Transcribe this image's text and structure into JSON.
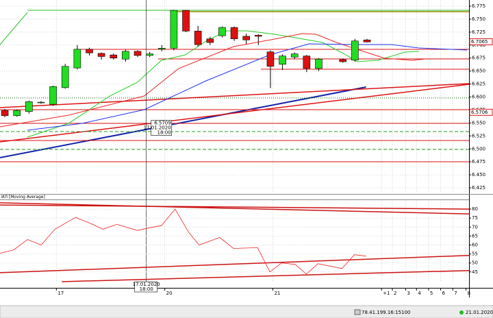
{
  "chart_data": [
    {
      "type": "candlestick",
      "x": [
        0,
        1,
        2,
        3,
        4,
        5,
        6,
        7,
        8,
        9,
        10,
        11,
        12,
        13,
        14,
        15,
        16,
        17,
        18,
        19,
        20,
        21,
        22,
        23,
        24,
        25,
        26,
        28,
        29,
        30
      ],
      "open": [
        6.574,
        6.564,
        6.572,
        6.589,
        6.586,
        6.618,
        6.656,
        6.692,
        6.684,
        6.681,
        6.673,
        6.688,
        6.68,
        6.692,
        6.694,
        6.767,
        6.727,
        6.712,
        6.718,
        6.734,
        6.717,
        6.719,
        6.687,
        6.663,
        6.677,
        6.679,
        6.655,
        6.672,
        6.671,
        6.71
      ],
      "high": [
        6.577,
        6.576,
        6.593,
        6.592,
        6.622,
        6.664,
        6.7,
        6.695,
        6.686,
        6.684,
        6.691,
        6.69,
        6.687,
        6.7,
        6.768,
        6.768,
        6.737,
        6.716,
        6.736,
        6.736,
        6.722,
        6.721,
        6.69,
        6.682,
        6.686,
        6.681,
        6.675,
        6.674,
        6.712,
        6.712
      ],
      "low": [
        6.561,
        6.562,
        6.568,
        6.587,
        6.583,
        6.616,
        6.653,
        6.68,
        6.672,
        6.672,
        6.668,
        6.677,
        6.677,
        6.688,
        6.69,
        6.725,
        6.697,
        6.7,
        6.715,
        6.708,
        6.702,
        6.7,
        6.617,
        6.652,
        6.673,
        6.648,
        6.65,
        6.666,
        6.668,
        6.705
      ],
      "close": [
        6.564,
        6.574,
        6.591,
        6.59,
        6.62,
        6.659,
        6.692,
        6.685,
        6.678,
        6.675,
        6.688,
        6.68,
        6.683,
        6.694,
        6.767,
        6.727,
        6.701,
        6.705,
        6.734,
        6.712,
        6.71,
        6.717,
        6.659,
        6.679,
        6.683,
        6.655,
        6.673,
        6.668,
        6.708,
        6.706
      ],
      "up_color": "#22dd22",
      "down_color": "#dd1111",
      "xlim": [
        -0.4,
        38.45
      ],
      "ylim": [
        6.4145,
        6.7869
      ],
      "yticks": [
        6.425,
        {
          "value": 6.45,
          "label": "6.450"
        },
        6.475,
        {
          "value": 6.5,
          "label": "6.500"
        },
        6.525,
        {
          "value": 6.55,
          "label": "6.550"
        },
        6.575,
        {
          "value": 6.6,
          "label": "6.600"
        },
        6.625,
        {
          "value": 6.65,
          "label": "6.650"
        },
        6.675,
        {
          "value": 6.7,
          "label": "6.700"
        },
        6.725,
        {
          "value": 6.75,
          "label": "6.750"
        },
        6.775
      ],
      "xticks": [
        {
          "value": 4.27,
          "label": "17"
        },
        {
          "value": 13.25,
          "label": "20"
        },
        {
          "value": 22.2,
          "label": "21"
        },
        {
          "value": 31.2,
          "label": "+1"
        },
        {
          "value": 32.1,
          "label": "2"
        },
        {
          "value": 33.2,
          "label": "3"
        },
        {
          "value": 34.1,
          "label": "4"
        },
        {
          "value": 35.1,
          "label": "5"
        },
        {
          "value": 36.1,
          "label": "6"
        },
        {
          "value": 37.1,
          "label": "7"
        },
        {
          "value": 38.2,
          "label": "8"
        }
      ],
      "price_labels": [
        6.7065,
        6.5706
      ],
      "moving_averages": [
        {
          "color": "#22cc22",
          "x": [
            1.88,
            5.29,
            8.7,
            10.98,
            12.97,
            14.96,
            16.66,
            18.37,
            20.08,
            22.35,
            24.06,
            26.33,
            28.04,
            29.18,
            30.89,
            33.16,
            34.3
          ],
          "values": [
            6.5228,
            6.5492,
            6.602,
            6.6284,
            6.6707,
            6.6812,
            6.7077,
            6.7275,
            6.7275,
            6.7209,
            6.7143,
            6.705,
            6.6839,
            6.668,
            6.6707,
            6.6865,
            6.6878
          ]
        },
        {
          "color": "#ee2222",
          "x": [
            -0.4,
            5.29,
            11.55,
            14.39,
            18.94,
            22.35,
            24.63,
            25.77,
            27.47,
            29.18,
            31.45,
            33.73,
            34.87
          ],
          "values": [
            6.5426,
            6.565,
            6.602,
            6.6548,
            6.6971,
            6.7116,
            6.7222,
            6.7209,
            6.705,
            6.6918,
            6.6746,
            6.6707,
            6.6733
          ]
        },
        {
          "color": "#2233ee",
          "x": [
            1.88,
            6.43,
            11.55,
            16.66,
            21.95,
            25.2,
            29.18,
            32.02,
            34.3,
            38.28
          ],
          "values": [
            6.536,
            6.5492,
            6.5756,
            6.6311,
            6.6812,
            6.7024,
            6.701,
            6.701,
            6.6944,
            6.6905
          ]
        }
      ],
      "lines": [
        {
          "x": [
            -0.4,
            29.92
          ],
          "y": [
            6.4831,
            6.6192
          ],
          "color": "#1122aa",
          "width": 2
        },
        {
          "x": [
            -0.4,
            38.45
          ],
          "y": [
            6.5796,
            6.6258
          ],
          "color": "#dd1111",
          "width": 1.5
        },
        {
          "x": [
            -0.4,
            38.45
          ],
          "y": [
            6.5135,
            6.6245
          ],
          "color": "#dd1111",
          "width": 1.5
        },
        {
          "x": [
            -0.4,
            1.88
          ],
          "y": [
            6.701,
            6.7631
          ],
          "color": "#22bb22",
          "width": 1
        },
        {
          "x": [
            1.88,
            38.45
          ],
          "y": [
            6.7671,
            6.7671
          ],
          "color": "#22bb22",
          "width": 1
        },
        {
          "x": [
            13.7,
            38.45
          ],
          "y": [
            6.7644,
            6.7644
          ],
          "color": "#998800",
          "width": 1.5
        },
        {
          "x": [
            5.86,
            38.45
          ],
          "y": [
            6.6918,
            6.6918
          ],
          "color": "#dd1111",
          "width": 1
        },
        {
          "x": [
            12.7,
            38.45
          ],
          "y": [
            6.6733,
            6.6733
          ],
          "color": "#dd1111",
          "width": 1
        },
        {
          "x": [
            21.2,
            38.45
          ],
          "y": [
            6.6535,
            6.6535
          ],
          "color": "#dd1111",
          "width": 1
        },
        {
          "x": [
            -0.4,
            38.45
          ],
          "y": [
            6.5756,
            6.5756
          ],
          "color": "#dd1111",
          "width": 1
        },
        {
          "x": [
            -0.4,
            38.45
          ],
          "y": [
            6.5492,
            6.5492
          ],
          "color": "#dd1111",
          "width": 1
        },
        {
          "x": [
            -0.4,
            38.45
          ],
          "y": [
            6.5162,
            6.5162
          ],
          "color": "#dd1111",
          "width": 1
        },
        {
          "x": [
            -0.4,
            38.45
          ],
          "y": [
            6.4752,
            6.4752
          ],
          "color": "#dd1111",
          "width": 1
        },
        {
          "x": [
            -0.4,
            38.45
          ],
          "y": [
            6.5333,
            6.5333
          ],
          "color": "#229922",
          "width": 1,
          "dash": "5 3"
        },
        {
          "x": [
            -0.4,
            38.45
          ],
          "y": [
            6.499,
            6.499
          ],
          "color": "#229922",
          "width": 1,
          "dash": "5 3"
        },
        {
          "x": [
            -0.4,
            38.45
          ],
          "y": [
            6.598,
            6.598
          ],
          "color": "#116611",
          "width": 1,
          "dash": "1 2"
        }
      ]
    },
    {
      "type": "line",
      "title": "ИЛ [Moving Average]",
      "color": "#ee2222",
      "x": [
        -0.4,
        0.74,
        1.88,
        3.01,
        4.15,
        5.86,
        7.0,
        8.13,
        9.27,
        10.98,
        12.0,
        12.97,
        14.1,
        15.24,
        16.1,
        17.8,
        18.94,
        20.93,
        21.95,
        22.92,
        24.06,
        24.97,
        25.94,
        27.93,
        28.95,
        29.92
      ],
      "values": [
        55.4,
        57.3,
        63.1,
        60.0,
        68.8,
        75.4,
        72.3,
        68.8,
        71.5,
        68.1,
        69.6,
        70.8,
        80,
        66.9,
        60.0,
        64.2,
        58.1,
        58.5,
        45.0,
        50.0,
        49.2,
        43.8,
        49.6,
        46.9,
        54.6,
        53.8
      ],
      "xlim": [
        -0.4,
        38.45
      ],
      "ylim": [
        39.2,
        85
      ],
      "yticks": [
        45,
        50,
        55,
        60,
        65,
        70,
        75,
        80
      ],
      "lines": [
        {
          "x": [
            -0.4,
            38.45
          ],
          "y": [
            83.5,
            77.3
          ],
          "color": "#cc1111",
          "width": 1.5
        },
        {
          "x": [
            -0.4,
            38.45
          ],
          "y": [
            82.3,
            80.0
          ],
          "color": "#cc1111",
          "width": 1.5
        },
        {
          "x": [
            -0.4,
            38.45
          ],
          "y": [
            44.6,
            54.2
          ],
          "color": "#cc1111",
          "width": 1.5
        },
        {
          "x": [
            4.72,
            38.45
          ],
          "y": [
            39.6,
            45.8
          ],
          "color": "#cc1111",
          "width": 1.5
        }
      ]
    }
  ],
  "crosshair": {
    "x": 11.72,
    "price": 6.5709,
    "date": "17.01.2020",
    "time": "18:00"
  },
  "status": {
    "address": "78.41.199.16:15100",
    "date": "21.01.2020"
  }
}
